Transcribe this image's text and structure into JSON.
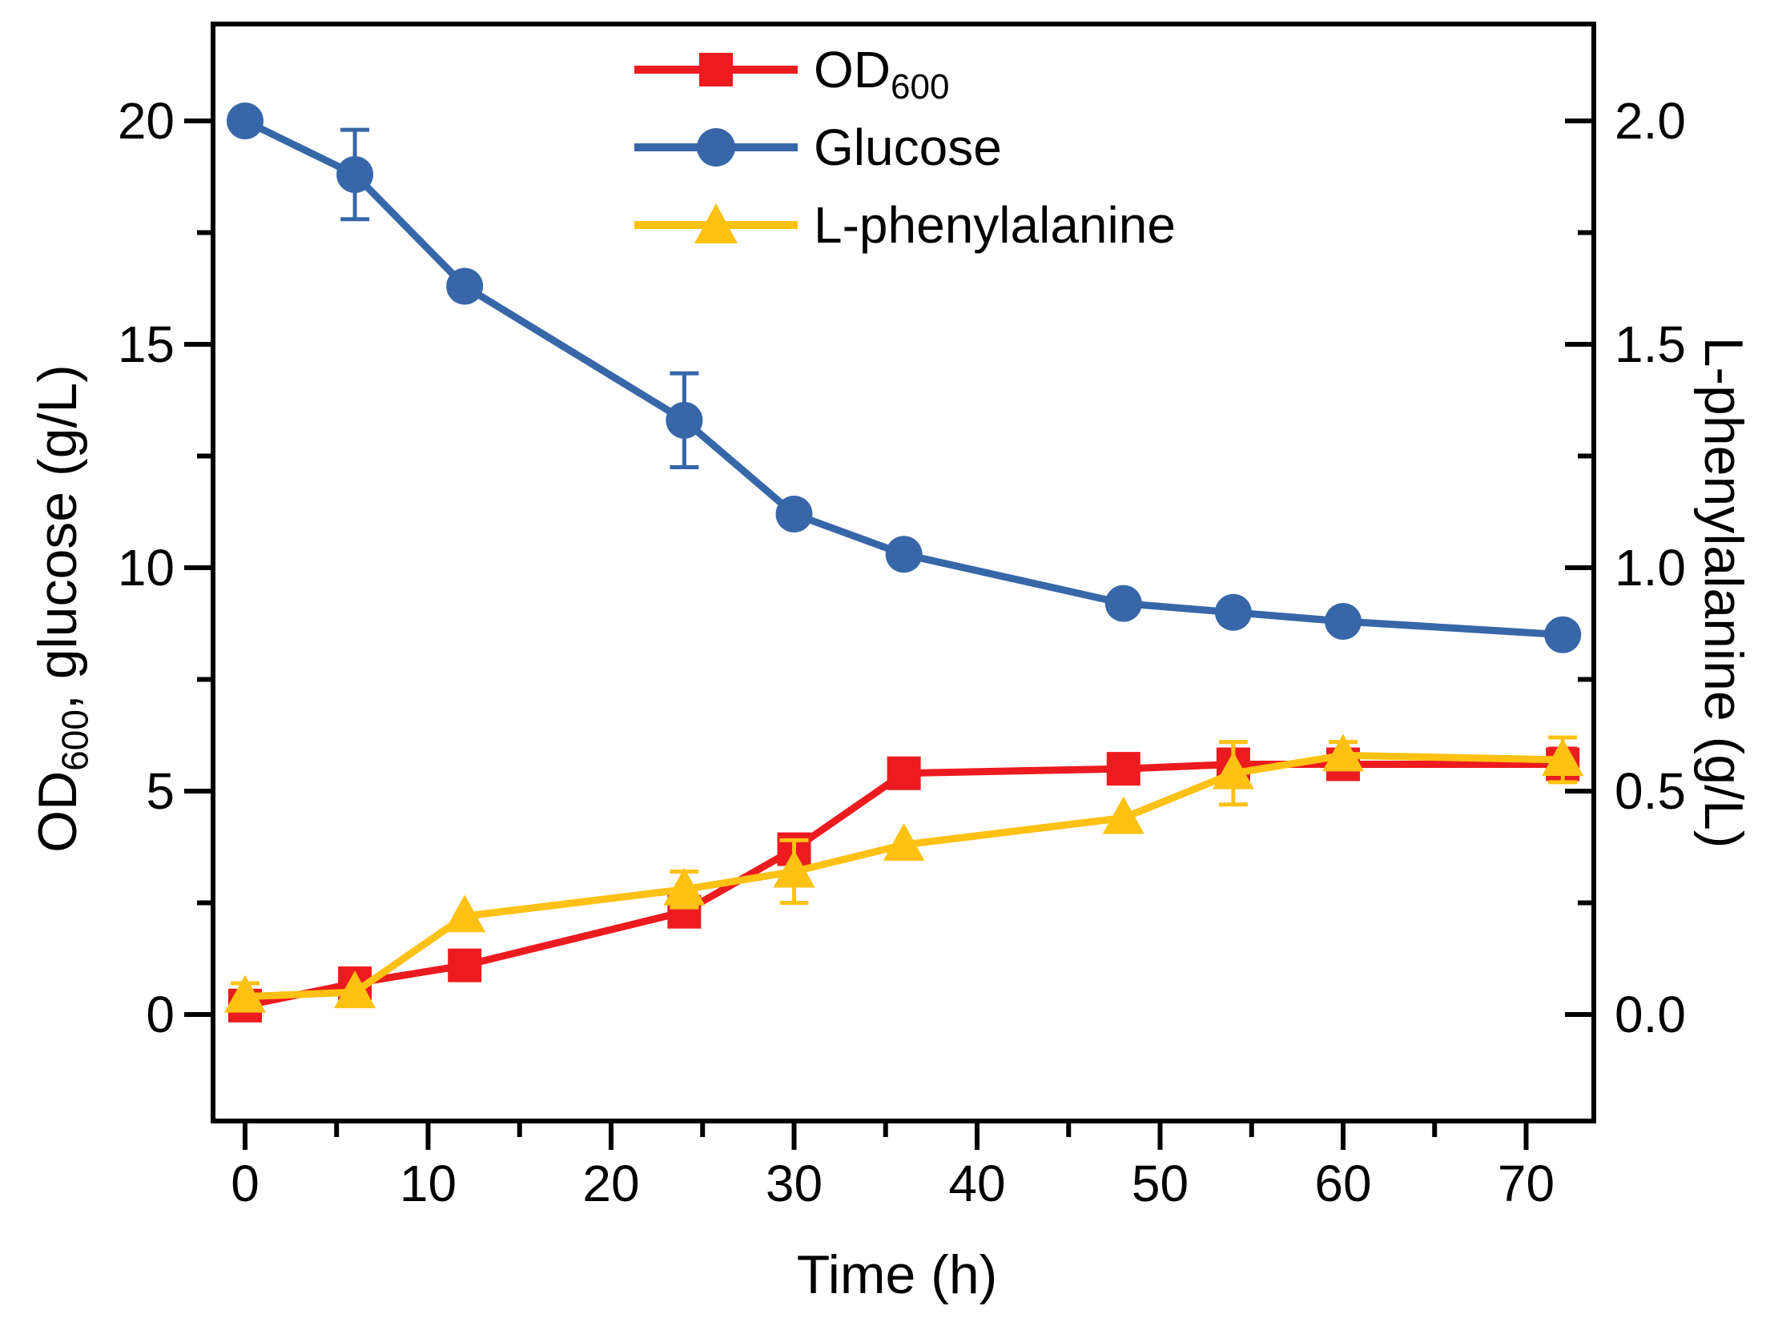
{
  "chart_data": {
    "type": "line",
    "title": "",
    "xlabel": "Time (h)",
    "ylabel_left": {
      "main": "OD",
      "sub": "600",
      "rest": ", glucose (g/L)"
    },
    "ylabel_right": "L-phenylalanine (g/L)",
    "x": [
      0,
      6,
      12,
      24,
      30,
      36,
      48,
      54,
      60,
      72
    ],
    "series": [
      {
        "name": "OD600",
        "legend_main": "OD",
        "legend_sub": "600",
        "axis": "left",
        "marker": "square",
        "color": "#EC1B1F",
        "values": [
          0.2,
          0.7,
          1.1,
          2.3,
          3.7,
          5.4,
          5.5,
          5.6,
          5.6,
          5.6
        ],
        "errors": [
          0.3,
          null,
          null,
          0.2,
          null,
          null,
          null,
          0.3,
          null,
          0.35
        ]
      },
      {
        "name": "Glucose",
        "legend_main": "Glucose",
        "legend_sub": "",
        "axis": "left",
        "marker": "circle",
        "color": "#3767A8",
        "values": [
          20.0,
          18.8,
          16.3,
          13.3,
          11.2,
          10.3,
          9.2,
          9.0,
          8.8,
          8.5
        ],
        "errors": [
          null,
          1.0,
          null,
          1.05,
          null,
          null,
          null,
          null,
          null,
          null
        ]
      },
      {
        "name": "L-phenylalanine",
        "legend_main": "L-phenylalanine",
        "legend_sub": "",
        "axis": "right",
        "marker": "triangle",
        "color": "#FFC114",
        "values": [
          0.04,
          0.05,
          0.22,
          0.28,
          0.32,
          0.38,
          0.44,
          0.54,
          0.58,
          0.57
        ],
        "errors": [
          0.03,
          null,
          null,
          0.04,
          0.07,
          null,
          null,
          0.07,
          0.03,
          0.05
        ]
      }
    ],
    "x_ticks": [
      0,
      10,
      20,
      30,
      40,
      50,
      60,
      70
    ],
    "x_minor_ticks": [
      5,
      15,
      25,
      35,
      45,
      55,
      65
    ],
    "y_left_ticks": [
      0,
      5,
      10,
      15,
      20
    ],
    "y_left_minor_ticks": [
      2.5,
      7.5,
      12.5,
      17.5
    ],
    "y_right_ticks": [
      "0.0",
      "0.5",
      "1.0",
      "1.5",
      "2.0"
    ],
    "y_right_tick_values": [
      0,
      0.5,
      1.0,
      1.5,
      2.0
    ],
    "y_right_minor_ticks": [
      0.25,
      0.75,
      1.25,
      1.75
    ],
    "axis_ranges": {
      "x": [
        -1.75,
        73.7
      ],
      "y_left": [
        -2.4,
        22.2
      ],
      "y_right": [
        -0.24,
        2.22
      ]
    },
    "legend_position": "top-center-inside",
    "grid": false,
    "colors": {
      "od600": "#EC1B1F",
      "glucose": "#3767A8",
      "phenylalanine": "#FFC114",
      "axis": "#000000",
      "background": "#FFFFFF"
    }
  }
}
